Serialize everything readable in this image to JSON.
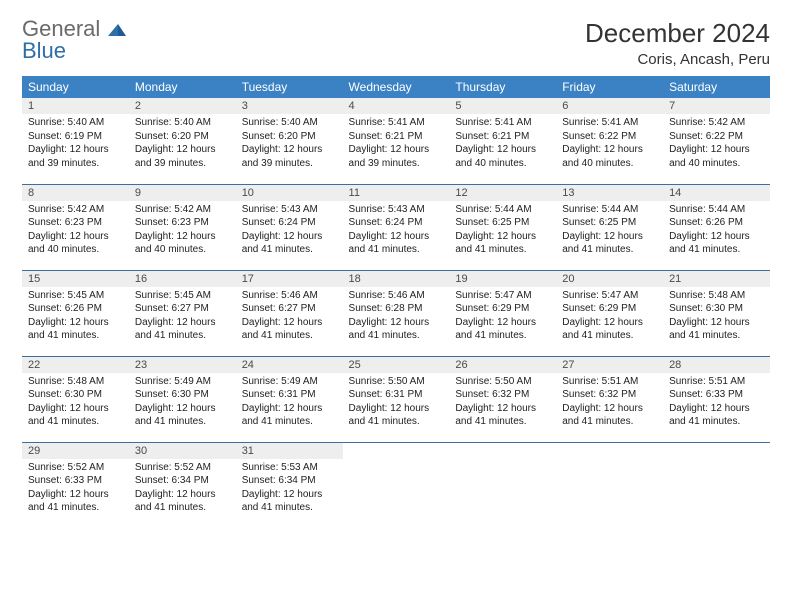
{
  "logo": {
    "line1": "General",
    "line2": "Blue"
  },
  "title": "December 2024",
  "location": "Coris, Ancash, Peru",
  "colors": {
    "header_bg": "#3b82c4",
    "header_fg": "#ffffff",
    "daynum_bg": "#eeeeee",
    "row_border": "#3b6fa0",
    "logo_gray": "#6a6a6a",
    "logo_blue": "#2f6fa8"
  },
  "weekdays": [
    "Sunday",
    "Monday",
    "Tuesday",
    "Wednesday",
    "Thursday",
    "Friday",
    "Saturday"
  ],
  "days": [
    {
      "n": "1",
      "sr": "5:40 AM",
      "ss": "6:19 PM",
      "dl": "12 hours and 39 minutes."
    },
    {
      "n": "2",
      "sr": "5:40 AM",
      "ss": "6:20 PM",
      "dl": "12 hours and 39 minutes."
    },
    {
      "n": "3",
      "sr": "5:40 AM",
      "ss": "6:20 PM",
      "dl": "12 hours and 39 minutes."
    },
    {
      "n": "4",
      "sr": "5:41 AM",
      "ss": "6:21 PM",
      "dl": "12 hours and 39 minutes."
    },
    {
      "n": "5",
      "sr": "5:41 AM",
      "ss": "6:21 PM",
      "dl": "12 hours and 40 minutes."
    },
    {
      "n": "6",
      "sr": "5:41 AM",
      "ss": "6:22 PM",
      "dl": "12 hours and 40 minutes."
    },
    {
      "n": "7",
      "sr": "5:42 AM",
      "ss": "6:22 PM",
      "dl": "12 hours and 40 minutes."
    },
    {
      "n": "8",
      "sr": "5:42 AM",
      "ss": "6:23 PM",
      "dl": "12 hours and 40 minutes."
    },
    {
      "n": "9",
      "sr": "5:42 AM",
      "ss": "6:23 PM",
      "dl": "12 hours and 40 minutes."
    },
    {
      "n": "10",
      "sr": "5:43 AM",
      "ss": "6:24 PM",
      "dl": "12 hours and 41 minutes."
    },
    {
      "n": "11",
      "sr": "5:43 AM",
      "ss": "6:24 PM",
      "dl": "12 hours and 41 minutes."
    },
    {
      "n": "12",
      "sr": "5:44 AM",
      "ss": "6:25 PM",
      "dl": "12 hours and 41 minutes."
    },
    {
      "n": "13",
      "sr": "5:44 AM",
      "ss": "6:25 PM",
      "dl": "12 hours and 41 minutes."
    },
    {
      "n": "14",
      "sr": "5:44 AM",
      "ss": "6:26 PM",
      "dl": "12 hours and 41 minutes."
    },
    {
      "n": "15",
      "sr": "5:45 AM",
      "ss": "6:26 PM",
      "dl": "12 hours and 41 minutes."
    },
    {
      "n": "16",
      "sr": "5:45 AM",
      "ss": "6:27 PM",
      "dl": "12 hours and 41 minutes."
    },
    {
      "n": "17",
      "sr": "5:46 AM",
      "ss": "6:27 PM",
      "dl": "12 hours and 41 minutes."
    },
    {
      "n": "18",
      "sr": "5:46 AM",
      "ss": "6:28 PM",
      "dl": "12 hours and 41 minutes."
    },
    {
      "n": "19",
      "sr": "5:47 AM",
      "ss": "6:29 PM",
      "dl": "12 hours and 41 minutes."
    },
    {
      "n": "20",
      "sr": "5:47 AM",
      "ss": "6:29 PM",
      "dl": "12 hours and 41 minutes."
    },
    {
      "n": "21",
      "sr": "5:48 AM",
      "ss": "6:30 PM",
      "dl": "12 hours and 41 minutes."
    },
    {
      "n": "22",
      "sr": "5:48 AM",
      "ss": "6:30 PM",
      "dl": "12 hours and 41 minutes."
    },
    {
      "n": "23",
      "sr": "5:49 AM",
      "ss": "6:30 PM",
      "dl": "12 hours and 41 minutes."
    },
    {
      "n": "24",
      "sr": "5:49 AM",
      "ss": "6:31 PM",
      "dl": "12 hours and 41 minutes."
    },
    {
      "n": "25",
      "sr": "5:50 AM",
      "ss": "6:31 PM",
      "dl": "12 hours and 41 minutes."
    },
    {
      "n": "26",
      "sr": "5:50 AM",
      "ss": "6:32 PM",
      "dl": "12 hours and 41 minutes."
    },
    {
      "n": "27",
      "sr": "5:51 AM",
      "ss": "6:32 PM",
      "dl": "12 hours and 41 minutes."
    },
    {
      "n": "28",
      "sr": "5:51 AM",
      "ss": "6:33 PM",
      "dl": "12 hours and 41 minutes."
    },
    {
      "n": "29",
      "sr": "5:52 AM",
      "ss": "6:33 PM",
      "dl": "12 hours and 41 minutes."
    },
    {
      "n": "30",
      "sr": "5:52 AM",
      "ss": "6:34 PM",
      "dl": "12 hours and 41 minutes."
    },
    {
      "n": "31",
      "sr": "5:53 AM",
      "ss": "6:34 PM",
      "dl": "12 hours and 41 minutes."
    }
  ],
  "labels": {
    "sunrise": "Sunrise:",
    "sunset": "Sunset:",
    "daylight": "Daylight:"
  },
  "layout": {
    "start_weekday": 0,
    "cols": 7
  }
}
